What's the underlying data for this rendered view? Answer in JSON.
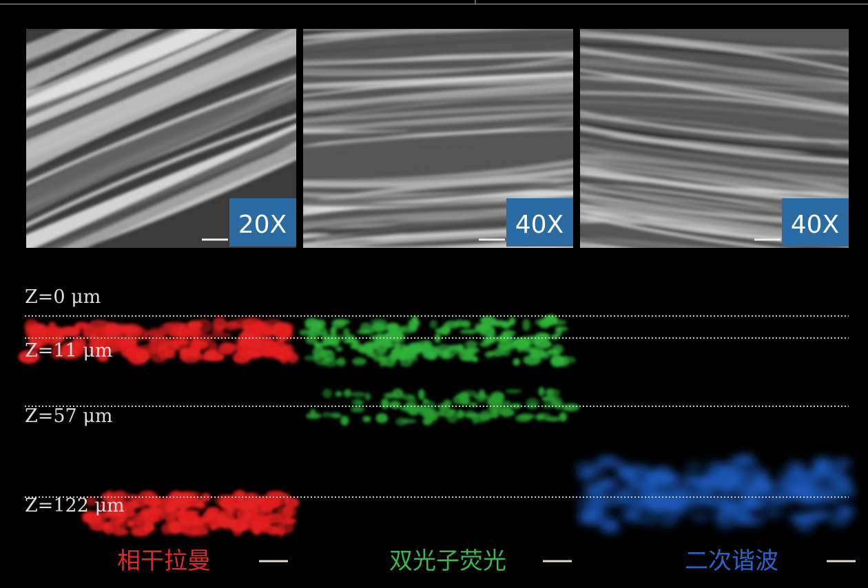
{
  "panels": [
    {
      "magnification": "20X",
      "label": "相干拉曼"
    },
    {
      "magnification": "40X",
      "label": "双光子荧光"
    },
    {
      "magnification": "40X",
      "label": "二次谐波"
    }
  ],
  "depths": [
    "Z=0 μm",
    "Z=11 μm",
    "Z=57 μm",
    "Z=122 μm"
  ]
}
